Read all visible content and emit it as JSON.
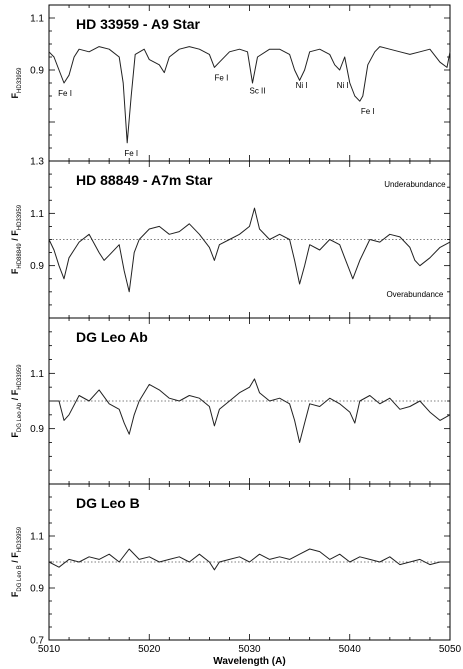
{
  "chart_data": {
    "type": "line",
    "xlabel": "Wavelength (A)",
    "xlim": [
      5010,
      5050
    ],
    "xticks": [
      5010,
      5020,
      5030,
      5040,
      5050
    ],
    "panels": [
      {
        "title": "HD 33959 - A9 Star",
        "ylabel_main": "F",
        "ylabel_sub": "HD33959",
        "ylim": [
          0.55,
          1.15
        ],
        "yticks": [
          "0.9",
          "1.1"
        ],
        "ytick_values": [
          0.9,
          1.1
        ],
        "reference_line": null,
        "notes": [],
        "series": [
          {
            "x": [
              5010,
              5010.5,
              5011,
              5011.5,
              5012,
              5012.5,
              5013,
              5014,
              5015,
              5016,
              5017,
              5017.4,
              5017.8,
              5018.2,
              5018.6,
              5019.5,
              5020,
              5021,
              5021.5,
              5022,
              5023,
              5024,
              5025,
              5026,
              5026.5,
              5027,
              5028,
              5029,
              5029.8,
              5030.3,
              5030.8,
              5032,
              5033,
              5034,
              5034.5,
              5035,
              5035.5,
              5036,
              5037,
              5038,
              5038.5,
              5039,
              5039.5,
              5040,
              5040.5,
              5041,
              5041.3,
              5041.8,
              5042.5,
              5043,
              5044,
              5045,
              5046,
              5047,
              5048,
              5049,
              5049.7,
              5050
            ],
            "y": [
              0.97,
              0.95,
              0.9,
              0.85,
              0.88,
              0.95,
              0.98,
              0.97,
              0.99,
              0.98,
              0.95,
              0.85,
              0.62,
              0.8,
              0.96,
              0.98,
              0.94,
              0.92,
              0.89,
              0.95,
              0.98,
              0.99,
              0.98,
              0.96,
              0.91,
              0.93,
              0.97,
              0.98,
              0.97,
              0.85,
              0.95,
              0.98,
              0.98,
              0.96,
              0.9,
              0.86,
              0.9,
              0.97,
              0.98,
              0.96,
              0.92,
              0.9,
              0.95,
              0.85,
              0.8,
              0.78,
              0.8,
              0.92,
              0.97,
              0.99,
              0.98,
              0.97,
              0.96,
              0.97,
              0.98,
              0.93,
              0.91,
              0.97
            ]
          }
        ],
        "annotations": [
          {
            "text": "Fe I",
            "x": 5011.6,
            "y": 0.8
          },
          {
            "text": "Fe I",
            "x": 5018.2,
            "y": 0.57
          },
          {
            "text": "Fe I",
            "x": 5027.2,
            "y": 0.86
          },
          {
            "text": "Sc II",
            "x": 5030.8,
            "y": 0.81
          },
          {
            "text": "Ni I",
            "x": 5035.2,
            "y": 0.83
          },
          {
            "text": "Ni I",
            "x": 5039.3,
            "y": 0.83
          },
          {
            "text": "Fe I",
            "x": 5041.8,
            "y": 0.73
          }
        ]
      },
      {
        "title": "HD 88849 - A7m Star",
        "ylabel_main": "F",
        "ylabel_main_sub": "HD88849",
        "ylabel_sep": " / F",
        "ylabel_sub": "HD33959",
        "ylim": [
          0.7,
          1.3
        ],
        "yticks": [
          "0.9",
          "1.1",
          "1.3"
        ],
        "ytick_values": [
          0.9,
          1.1,
          1.3
        ],
        "reference_line": 1.0,
        "notes": [
          {
            "text": "Underabundance",
            "x": 5046.5,
            "y": 1.2
          },
          {
            "text": "Overabundance",
            "x": 5046.5,
            "y": 0.78
          }
        ],
        "series": [
          {
            "x": [
              5010,
              5010.5,
              5011,
              5011.5,
              5012,
              5013,
              5014,
              5015,
              5015.5,
              5016,
              5017,
              5017.5,
              5018,
              5018.5,
              5019,
              5020,
              5021,
              5022,
              5023,
              5024,
              5025,
              5026,
              5026.5,
              5027,
              5028,
              5029,
              5030,
              5030.5,
              5031,
              5032,
              5033,
              5034,
              5034.5,
              5035,
              5035.5,
              5036,
              5037,
              5038,
              5039,
              5039.5,
              5040,
              5040.3,
              5041,
              5042,
              5043,
              5044,
              5045,
              5046,
              5046.5,
              5047,
              5048,
              5049,
              5050
            ],
            "y": [
              1.0,
              0.96,
              0.9,
              0.85,
              0.93,
              0.99,
              1.02,
              0.95,
              0.92,
              0.94,
              0.98,
              0.88,
              0.8,
              0.95,
              1.0,
              1.04,
              1.05,
              1.02,
              1.03,
              1.06,
              1.02,
              0.97,
              0.92,
              0.98,
              1.0,
              1.02,
              1.05,
              1.12,
              1.04,
              1.0,
              1.02,
              1.0,
              0.92,
              0.83,
              0.9,
              0.98,
              0.96,
              1.0,
              0.98,
              0.93,
              0.88,
              0.85,
              0.92,
              1.0,
              0.99,
              1.02,
              1.01,
              0.97,
              0.92,
              0.9,
              0.93,
              0.97,
              0.99
            ]
          }
        ]
      },
      {
        "title": "DG Leo Ab",
        "ylabel_main": "F",
        "ylabel_main_sub": "DG Leo Ab",
        "ylabel_sep": " / F",
        "ylabel_sub": "HD33959",
        "ylim": [
          0.7,
          1.3
        ],
        "yticks": [
          "0.9",
          "1.1"
        ],
        "ytick_values": [
          0.9,
          1.1
        ],
        "reference_line": 1.0,
        "notes": [],
        "series": [
          {
            "x": [
              5010,
              5011,
              5011.5,
              5012,
              5013,
              5014,
              5015,
              5016,
              5017,
              5017.5,
              5018,
              5018.5,
              5019,
              5020,
              5021,
              5022,
              5023,
              5024,
              5025,
              5026,
              5026.5,
              5027,
              5028,
              5029,
              5030,
              5030.5,
              5031,
              5032,
              5033,
              5034,
              5034.5,
              5035,
              5035.5,
              5036,
              5037,
              5038,
              5039,
              5040,
              5040.5,
              5041,
              5042,
              5043,
              5044,
              5045,
              5046,
              5047,
              5048,
              5049,
              5050
            ],
            "y": [
              1.0,
              1.0,
              0.93,
              0.95,
              1.02,
              1.0,
              1.04,
              0.99,
              0.97,
              0.92,
              0.88,
              0.95,
              1.0,
              1.06,
              1.04,
              1.01,
              1.0,
              1.02,
              1.01,
              0.98,
              0.91,
              0.97,
              1.0,
              1.03,
              1.05,
              1.08,
              1.03,
              1.0,
              1.01,
              0.99,
              0.93,
              0.85,
              0.92,
              0.99,
              0.98,
              1.01,
              0.99,
              0.96,
              0.92,
              1.0,
              1.02,
              0.99,
              1.01,
              0.97,
              0.98,
              1.0,
              0.96,
              0.93,
              0.95
            ]
          }
        ]
      },
      {
        "title": "DG Leo B",
        "ylabel_main": "F",
        "ylabel_main_sub": "DG Leo B",
        "ylabel_sep": " / F",
        "ylabel_sub": "HD33959",
        "ylim": [
          0.7,
          1.3
        ],
        "yticks": [
          "0.7",
          "0.9",
          "1.1"
        ],
        "ytick_values": [
          0.7,
          0.9,
          1.1
        ],
        "reference_line": 1.0,
        "notes": [],
        "series": [
          {
            "x": [
              5010,
              5011,
              5012,
              5013,
              5014,
              5015,
              5016,
              5017,
              5018,
              5019,
              5020,
              5021,
              5022,
              5023,
              5024,
              5025,
              5026,
              5026.5,
              5027,
              5028,
              5029,
              5030,
              5031,
              5032,
              5033,
              5034,
              5035,
              5036,
              5037,
              5038,
              5039,
              5040,
              5041,
              5042,
              5043,
              5044,
              5045,
              5046,
              5047,
              5048,
              5049,
              5050
            ],
            "y": [
              1.0,
              0.98,
              1.01,
              1.0,
              1.02,
              1.01,
              1.03,
              1.0,
              1.05,
              1.01,
              1.02,
              1.0,
              1.01,
              1.02,
              1.0,
              1.03,
              1.0,
              0.97,
              1.0,
              1.01,
              1.02,
              1.0,
              1.03,
              1.01,
              1.02,
              1.01,
              1.03,
              1.05,
              1.04,
              1.01,
              1.03,
              1.0,
              1.02,
              1.01,
              1.0,
              1.02,
              0.99,
              1.0,
              1.01,
              0.99,
              1.0,
              1.0
            ]
          }
        ]
      }
    ]
  }
}
